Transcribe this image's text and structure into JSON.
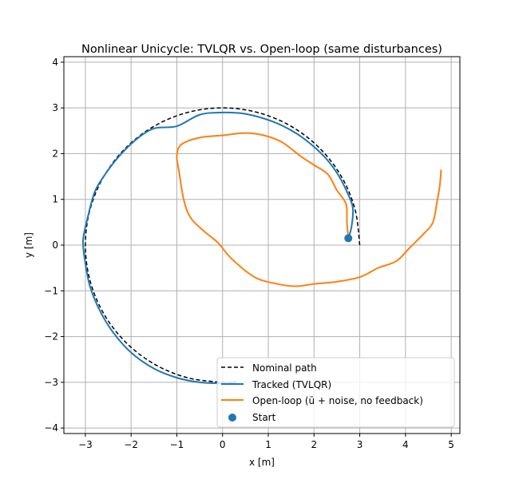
{
  "chart_data": {
    "type": "line",
    "title": "Nonlinear Unicycle: TVLQR vs. Open-loop (same disturbances)",
    "xlabel": "x [m]",
    "ylabel": "y [m]",
    "xlim": [
      -3.47,
      5.19
    ],
    "ylim": [
      -4.12,
      4.12
    ],
    "xticks": [
      -3,
      -2,
      -1,
      0,
      1,
      2,
      3,
      4,
      5
    ],
    "yticks": [
      -4,
      -3,
      -2,
      -1,
      0,
      1,
      2,
      3,
      4
    ],
    "grid": true,
    "legend_position": "lower-right",
    "series": [
      {
        "name": "Nominal path",
        "style": "dashed",
        "color": "#000000",
        "points": [
          [
            3,
            0
          ],
          [
            2.898,
            0.776
          ],
          [
            2.598,
            1.5
          ],
          [
            2.121,
            2.121
          ],
          [
            1.5,
            2.598
          ],
          [
            0.776,
            2.898
          ],
          [
            0,
            3
          ],
          [
            -0.776,
            2.898
          ],
          [
            -1.5,
            2.598
          ],
          [
            -2.121,
            2.121
          ],
          [
            -2.598,
            1.5
          ],
          [
            -2.898,
            0.776
          ],
          [
            -3,
            0
          ],
          [
            -2.898,
            -0.776
          ],
          [
            -2.598,
            -1.5
          ],
          [
            -2.121,
            -2.121
          ],
          [
            -1.5,
            -2.598
          ],
          [
            -0.776,
            -2.898
          ],
          [
            0,
            -3
          ],
          [
            0.3,
            -2.985
          ]
        ]
      },
      {
        "name": "Tracked (TVLQR)",
        "style": "solid",
        "color": "#1f77b4",
        "points": [
          [
            2.75,
            0.15
          ],
          [
            2.82,
            0.4
          ],
          [
            2.85,
            0.8
          ],
          [
            2.75,
            1.1
          ],
          [
            2.55,
            1.5
          ],
          [
            2.3,
            1.85
          ],
          [
            2.0,
            2.15
          ],
          [
            1.6,
            2.45
          ],
          [
            1.1,
            2.7
          ],
          [
            0.5,
            2.87
          ],
          [
            0,
            2.9
          ],
          [
            -0.5,
            2.85
          ],
          [
            -1,
            2.6
          ],
          [
            -1.5,
            2.55
          ],
          [
            -1.9,
            2.3
          ],
          [
            -2.3,
            1.9
          ],
          [
            -2.6,
            1.5
          ],
          [
            -2.8,
            1.15
          ],
          [
            -2.95,
            0.6
          ],
          [
            -3.05,
            0.1
          ],
          [
            -3.0,
            -0.4
          ],
          [
            -2.9,
            -0.9
          ],
          [
            -2.7,
            -1.4
          ],
          [
            -2.4,
            -1.9
          ],
          [
            -2.0,
            -2.35
          ],
          [
            -1.5,
            -2.7
          ],
          [
            -1.0,
            -2.9
          ],
          [
            -0.5,
            -3.0
          ],
          [
            0,
            -3.02
          ],
          [
            0.3,
            -3.0
          ]
        ]
      },
      {
        "name": "Open-loop (ū + noise, no feedback)",
        "style": "solid",
        "color": "#ff7f0e",
        "points": [
          [
            2.75,
            0.15
          ],
          [
            2.72,
            0.5
          ],
          [
            2.7,
            0.9
          ],
          [
            2.5,
            1.2
          ],
          [
            2.3,
            1.55
          ],
          [
            2.0,
            1.75
          ],
          [
            1.7,
            1.95
          ],
          [
            1.3,
            2.25
          ],
          [
            0.9,
            2.4
          ],
          [
            0.5,
            2.45
          ],
          [
            0,
            2.4
          ],
          [
            -0.5,
            2.35
          ],
          [
            -0.9,
            2.2
          ],
          [
            -1.0,
            1.95
          ],
          [
            -0.95,
            1.6
          ],
          [
            -0.85,
            1.0
          ],
          [
            -0.7,
            0.6
          ],
          [
            -0.4,
            0.3
          ],
          [
            -0.1,
            0.05
          ],
          [
            0.2,
            -0.3
          ],
          [
            0.7,
            -0.7
          ],
          [
            1.2,
            -0.85
          ],
          [
            1.6,
            -0.9
          ],
          [
            2.0,
            -0.85
          ],
          [
            2.5,
            -0.8
          ],
          [
            3.0,
            -0.7
          ],
          [
            3.4,
            -0.5
          ],
          [
            3.8,
            -0.35
          ],
          [
            4.1,
            -0.05
          ],
          [
            4.4,
            0.25
          ],
          [
            4.6,
            0.5
          ],
          [
            4.7,
            1.0
          ],
          [
            4.75,
            1.3
          ],
          [
            4.78,
            1.65
          ]
        ]
      }
    ],
    "markers": [
      {
        "name": "Start",
        "color": "#1f77b4",
        "point": [
          2.75,
          0.15
        ]
      }
    ]
  }
}
